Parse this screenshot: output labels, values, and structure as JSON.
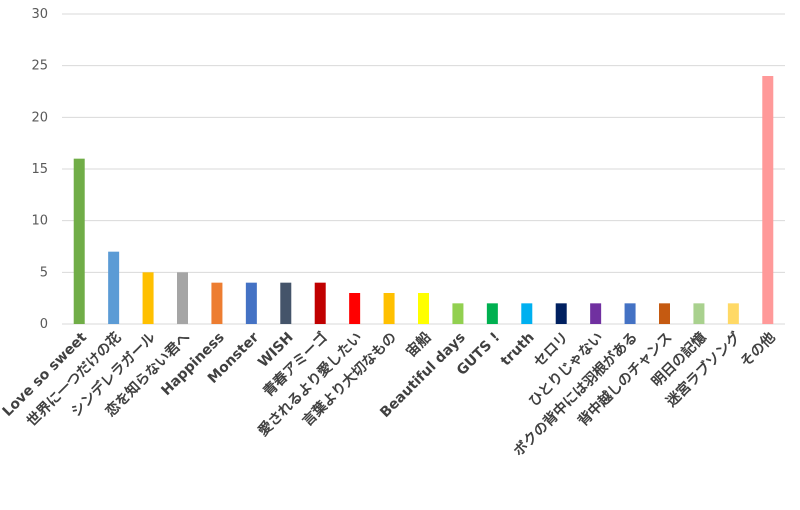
{
  "chart_data": {
    "type": "bar",
    "title": "",
    "xlabel": "",
    "ylabel": "",
    "ylim": [
      0,
      30
    ],
    "yticks": [
      0,
      5,
      10,
      15,
      20,
      25,
      30
    ],
    "grid": true,
    "legend": "none",
    "categories": [
      "Love so sweet",
      "世界に一つだけの花",
      "シンデレラガール",
      "恋を知らない君へ",
      "Happiness",
      "Monster",
      "WISH",
      "青春アミーゴ",
      "愛されるより愛したい",
      "言葉より大切なもの",
      "宙船",
      "Beautiful days",
      "GUTS !",
      "truth",
      "セロリ",
      "ひとりじゃない",
      "ボクの背中には羽根がある",
      "背中越しのチャンス",
      "明日の記憶",
      "迷宮ラブソング",
      "その他"
    ],
    "values": [
      16,
      7,
      5,
      5,
      4,
      4,
      4,
      4,
      3,
      3,
      3,
      2,
      2,
      2,
      2,
      2,
      2,
      2,
      2,
      2,
      24
    ],
    "colors": [
      "#70ad47",
      "#5b9bd5",
      "#ffc000",
      "#a5a5a5",
      "#ed7d31",
      "#4472c4",
      "#44546a",
      "#c00000",
      "#ff0000",
      "#ffc000",
      "#ffff00",
      "#92d050",
      "#00b050",
      "#00b0f0",
      "#002060",
      "#7030a0",
      "#4472c4",
      "#c55a11",
      "#a9d18e",
      "#ffd966",
      "#ff9999"
    ]
  }
}
